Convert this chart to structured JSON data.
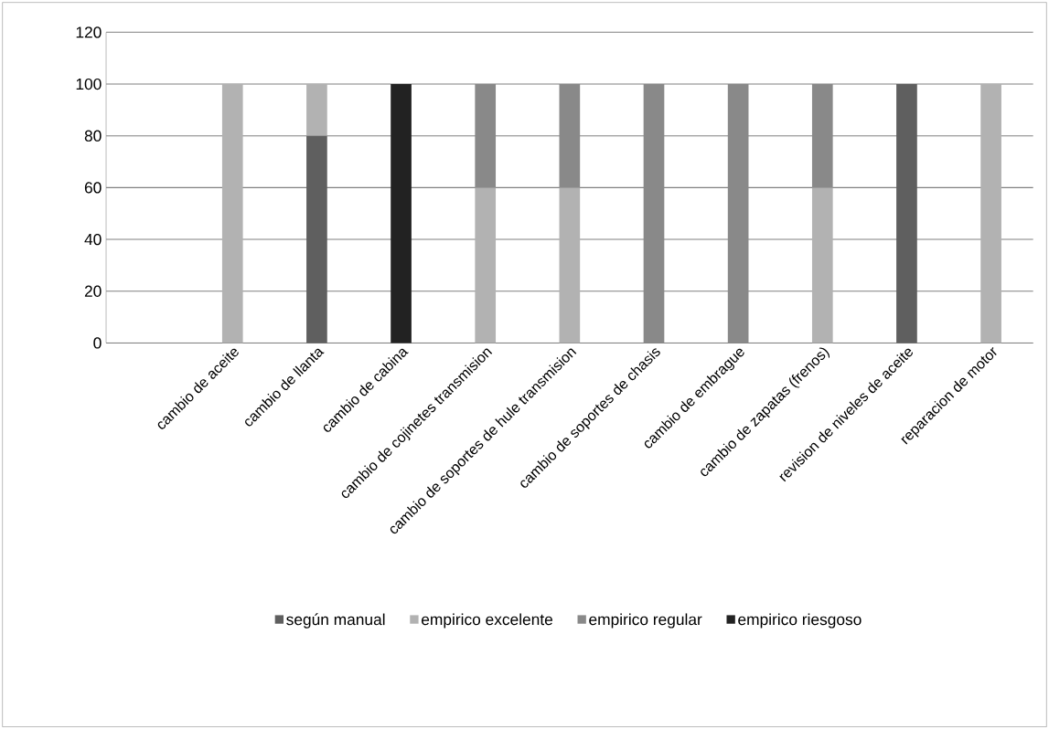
{
  "chart_data": {
    "type": "bar",
    "stacked": true,
    "categories": [
      null,
      "cambio de aceite",
      "cambio de llanta",
      "cambio de cabina",
      "cambio de cojinetes transmision",
      "cambio de soportes de hule transmision",
      "cambio de soportes de chasis",
      "cambio de embrague",
      "cambio de zapatas (frenos)",
      "revision de niveles de aceite",
      "reparacion de motor"
    ],
    "series": [
      {
        "name": "según manual",
        "color": "#5f5f5f",
        "values": [
          null,
          null,
          80,
          null,
          null,
          null,
          null,
          null,
          null,
          100,
          null
        ]
      },
      {
        "name": "empirico excelente",
        "color": "#b2b2b2",
        "values": [
          null,
          100,
          20,
          null,
          60,
          60,
          null,
          null,
          60,
          null,
          100
        ]
      },
      {
        "name": "empirico regular",
        "color": "#898989",
        "values": [
          null,
          null,
          null,
          null,
          40,
          40,
          100,
          100,
          40,
          null,
          null
        ]
      },
      {
        "name": "empirico riesgoso",
        "color": "#222222",
        "values": [
          null,
          null,
          null,
          100,
          null,
          null,
          null,
          null,
          null,
          null,
          null
        ]
      }
    ],
    "ylim": [
      0,
      120
    ],
    "yticks": [
      0,
      20,
      40,
      60,
      80,
      100,
      120
    ],
    "grid": "y",
    "legend": "bottom"
  }
}
